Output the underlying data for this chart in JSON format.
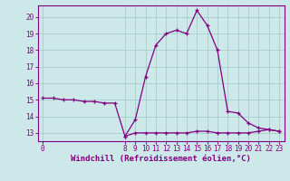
{
  "xlabel": "Windchill (Refroidissement éolien,°C)",
  "bg_color": "#cce8e8",
  "line_color": "#800080",
  "grid_color": "#aacccc",
  "axis_color": "#800080",
  "tick_color": "#800080",
  "label_color": "#800080",
  "x_ticks": [
    0,
    8,
    9,
    10,
    11,
    12,
    13,
    14,
    15,
    16,
    17,
    18,
    19,
    20,
    21,
    22,
    23
  ],
  "xlim": [
    -0.5,
    23.5
  ],
  "ylim": [
    12.5,
    20.7
  ],
  "y_ticks": [
    13,
    14,
    15,
    16,
    17,
    18,
    19,
    20
  ],
  "series1_x": [
    0,
    1,
    2,
    3,
    4,
    5,
    6,
    7,
    8,
    9,
    10,
    11,
    12,
    13,
    14,
    15,
    16,
    17,
    18,
    19,
    20,
    21,
    22,
    23
  ],
  "series1_y": [
    15.1,
    15.1,
    15.0,
    15.0,
    14.9,
    14.9,
    14.8,
    14.8,
    12.8,
    13.8,
    16.4,
    18.3,
    19.0,
    19.2,
    19.0,
    20.4,
    19.5,
    18.0,
    14.3,
    14.2,
    13.6,
    13.3,
    13.2,
    13.1
  ],
  "series2_x": [
    8,
    9,
    10,
    11,
    12,
    13,
    14,
    15,
    16,
    17,
    18,
    19,
    20,
    21,
    22,
    23
  ],
  "series2_y": [
    12.8,
    13.0,
    13.0,
    13.0,
    13.0,
    13.0,
    13.0,
    13.1,
    13.1,
    13.0,
    13.0,
    13.0,
    13.0,
    13.1,
    13.2,
    13.1
  ],
  "marker": "+",
  "markersize": 3.5,
  "linewidth": 0.9,
  "tick_fontsize": 5.5,
  "xlabel_fontsize": 6.5
}
